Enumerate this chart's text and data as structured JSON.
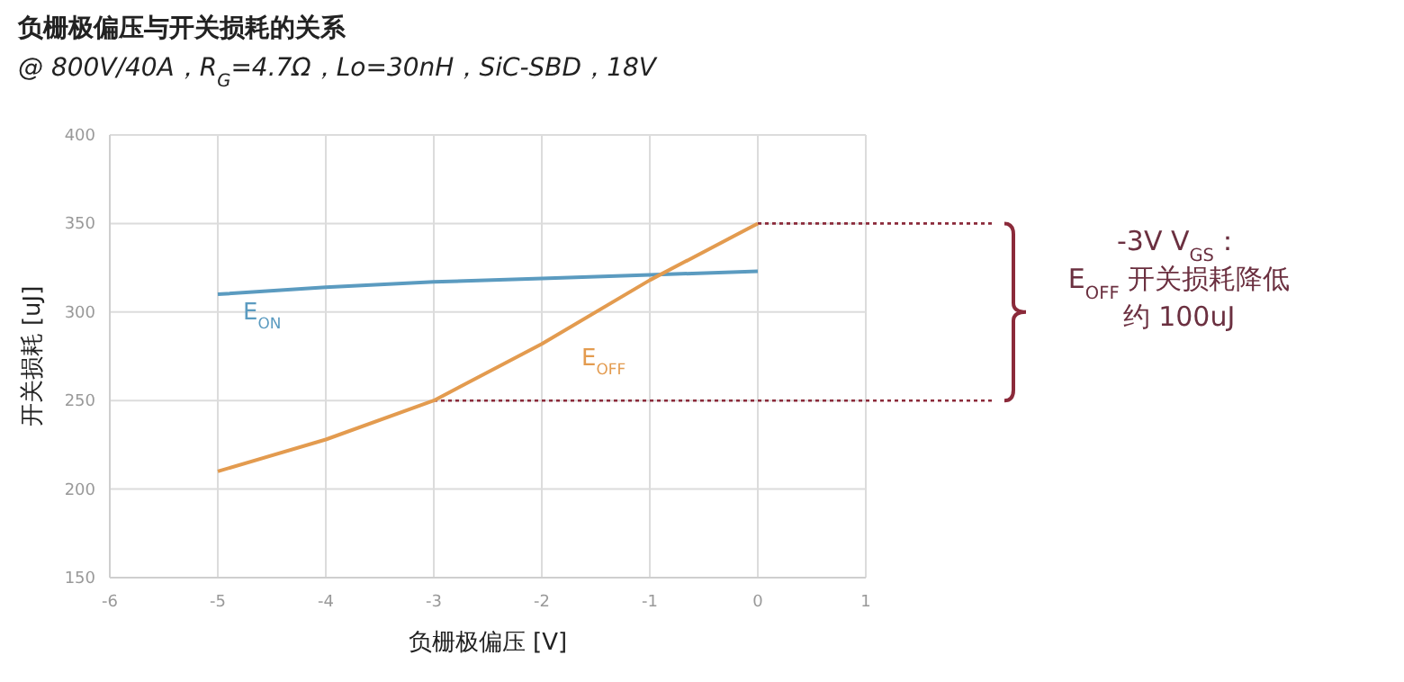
{
  "chart_data": {
    "type": "line",
    "title": "负栅极偏压与开关损耗的关系",
    "subtitle": "@ 800V/40A，R$_{G}$=4.7Ω，Lo=30nH，SiC-SBD，18V",
    "xlabel": "负栅极偏压 [V]",
    "ylabel": "开关损耗 [uJ]",
    "x": [
      -5,
      -4,
      -3,
      -2,
      -1,
      0
    ],
    "series": [
      {
        "name": "E$_{ON}$",
        "color": "#5b9bc0",
        "values": [
          310,
          314,
          317,
          319,
          321,
          323
        ]
      },
      {
        "name": "E$_{OFF}$",
        "color": "#e39b4f",
        "values": [
          210,
          228,
          250,
          282,
          318,
          350
        ]
      }
    ],
    "xlim": [
      -6,
      1
    ],
    "xticks": [
      -6,
      -5,
      -4,
      -3,
      -2,
      -1,
      0,
      1
    ],
    "ylim": [
      150,
      400
    ],
    "yticks": [
      150,
      200,
      250,
      300,
      350,
      400
    ],
    "grid": true,
    "marker": "none",
    "line_style": "solid",
    "ref_lines": [
      {
        "axis": "y",
        "value": 350,
        "color": "#8b2a3a",
        "line_style": "dotted"
      },
      {
        "axis": "y",
        "value": 250,
        "color": "#8b2a3a",
        "line_style": "dotted"
      }
    ],
    "annotations": [
      "-3V V$_{GS}$：",
      "E$_{OFF}$ 开关损耗降低",
      "约 100uJ"
    ]
  }
}
